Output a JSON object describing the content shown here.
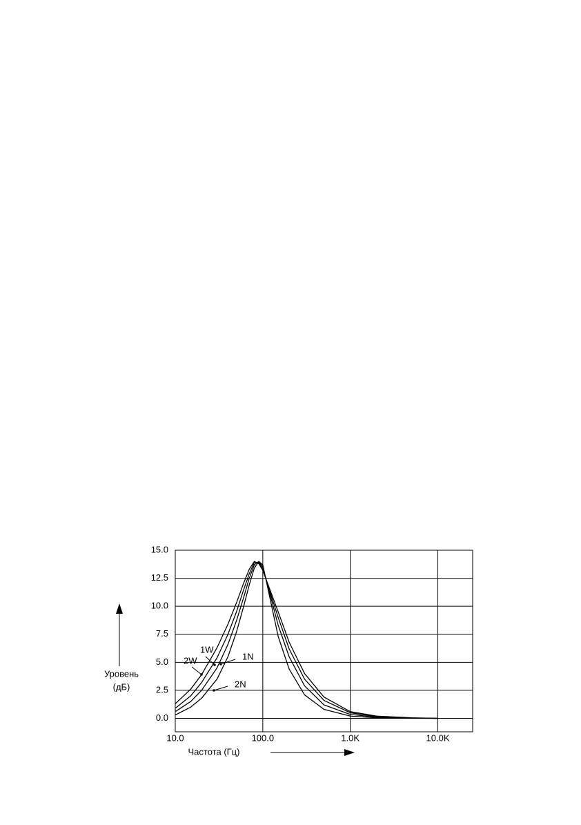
{
  "chart_data": {
    "type": "line",
    "xlabel": "Частота (Гц)",
    "ylabel": [
      "Уровень",
      "(дБ)"
    ],
    "log_x": true,
    "grid": true,
    "x": [
      10,
      15,
      20,
      30,
      40,
      50,
      60,
      70,
      80,
      90,
      100,
      150,
      200,
      300,
      500,
      1000,
      2000,
      5000,
      10000
    ],
    "series": [
      {
        "name": "2W",
        "color": "#000000",
        "values": [
          1.3,
          2.6,
          3.9,
          6.3,
          8.4,
          10.3,
          12.0,
          13.3,
          14.0,
          13.8,
          13.2,
          9.5,
          6.8,
          4.0,
          1.9,
          0.6,
          0.2,
          0.05,
          0
        ]
      },
      {
        "name": "1W",
        "color": "#000000",
        "values": [
          0.9,
          2.0,
          3.2,
          5.4,
          7.5,
          9.5,
          11.4,
          12.9,
          13.9,
          13.9,
          13.3,
          9.0,
          6.2,
          3.5,
          1.6,
          0.5,
          0.15,
          0.03,
          0
        ]
      },
      {
        "name": "1N",
        "color": "#000000",
        "values": [
          0.6,
          1.5,
          2.5,
          4.5,
          6.6,
          8.7,
          10.7,
          12.5,
          13.7,
          14.0,
          13.5,
          8.3,
          5.5,
          2.9,
          1.2,
          0.35,
          0.1,
          0.02,
          0
        ]
      },
      {
        "name": "2N",
        "color": "#000000",
        "values": [
          0.3,
          1.0,
          1.8,
          3.5,
          5.5,
          7.7,
          9.9,
          11.9,
          13.4,
          14.0,
          13.7,
          7.3,
          4.4,
          2.1,
          0.8,
          0.2,
          0.05,
          0,
          0
        ]
      }
    ],
    "xlim": [
      10,
      25000
    ],
    "xticks": [
      {
        "value": 10,
        "label": "10.0"
      },
      {
        "value": 100,
        "label": "100.0"
      },
      {
        "value": 1000,
        "label": "1.0K"
      },
      {
        "value": 10000,
        "label": "10.0K"
      }
    ],
    "ylim": [
      -1.2,
      15
    ],
    "yticks": [
      {
        "value": 0,
        "label": "0.0"
      },
      {
        "value": 2.5,
        "label": "2.5"
      },
      {
        "value": 5,
        "label": "5.0"
      },
      {
        "value": 7.5,
        "label": "7.5"
      },
      {
        "value": 10,
        "label": "10.0"
      },
      {
        "value": 12.5,
        "label": "12.5"
      },
      {
        "value": 15,
        "label": "15.0"
      }
    ]
  }
}
